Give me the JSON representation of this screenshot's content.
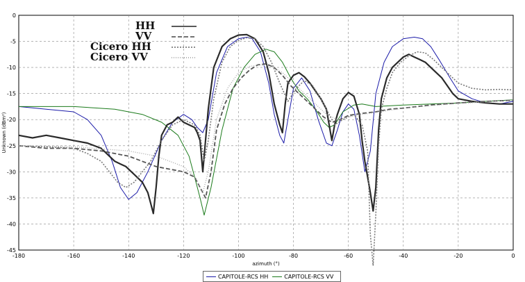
{
  "chart_data": {
    "type": "line",
    "xlabel": "azimuth (°)",
    "ylabel": "Unknown (dBm²)",
    "xlim": [
      -180,
      0
    ],
    "ylim": [
      -45,
      0
    ],
    "x_ticks": [
      "-180",
      "-160",
      "-140",
      "-120",
      "-100",
      "-80",
      "-60",
      "-40",
      "-20",
      "0"
    ],
    "y_ticks": [
      "0",
      "-5",
      "-10",
      "-15",
      "-20",
      "-25",
      "-30",
      "-35",
      "-40",
      "-45"
    ],
    "grid": "dashed",
    "legend_top": [
      {
        "label": "HH",
        "style": "solid"
      },
      {
        "label": "VV",
        "style": "dashed"
      },
      {
        "label": "Cicero HH",
        "style": "dotted"
      },
      {
        "label": "Cicero VV",
        "style": "dotted-light"
      }
    ],
    "legend_bottom": [
      {
        "label": "CAPITOLE-RCS HH",
        "color": "#1a1aa8"
      },
      {
        "label": "CAPITOLE-RCS VV",
        "color": "#1a7a1a"
      }
    ],
    "series": [
      {
        "name": "CAPITOLE-RCS HH",
        "color": "#1a1aa8",
        "width": 1,
        "x": [
          -180,
          -170,
          -160,
          -155,
          -150,
          -146,
          -143,
          -140,
          -137,
          -133,
          -128,
          -124,
          -120,
          -117,
          -115,
          -113,
          -111,
          -108,
          -104,
          -100,
          -97,
          -95,
          -92,
          -89,
          -87,
          -85,
          -83.5,
          -82,
          -80,
          -77,
          -74,
          -71,
          -68,
          -66,
          -64,
          -62,
          -60,
          -58,
          -56,
          -54,
          -52,
          -50,
          -47,
          -44,
          -40,
          -36,
          -33,
          -30,
          -27,
          -23,
          -20,
          -15,
          -10,
          -5,
          0
        ],
        "y": [
          -17.5,
          -18,
          -18.5,
          -20,
          -23,
          -28,
          -33,
          -35.3,
          -34,
          -30,
          -24,
          -20.5,
          -19,
          -20,
          -21.5,
          -22.5,
          -20,
          -11,
          -6,
          -4.5,
          -4.2,
          -4.5,
          -7,
          -13,
          -19,
          -23,
          -24.5,
          -20,
          -14,
          -12,
          -14.5,
          -20,
          -24.5,
          -25,
          -22,
          -18.5,
          -17,
          -18,
          -23,
          -30,
          -26,
          -15,
          -9,
          -6,
          -4.5,
          -4.2,
          -4.5,
          -6,
          -8.5,
          -12,
          -14.5,
          -16,
          -16.8,
          -17,
          -16.5
        ]
      },
      {
        "name": "CAPITOLE-RCS VV",
        "color": "#1a7a1a",
        "width": 1,
        "x": [
          -180,
          -160,
          -145,
          -135,
          -128,
          -122,
          -118,
          -116,
          -114,
          -112.5,
          -110,
          -106,
          -102,
          -98,
          -94,
          -90,
          -87,
          -84,
          -81,
          -78,
          -75,
          -72,
          -69,
          -67,
          -65,
          -62,
          -58,
          -55,
          -50,
          -40,
          -30,
          -20,
          -10,
          0
        ],
        "y": [
          -17.5,
          -17.5,
          -18,
          -19,
          -20.5,
          -23,
          -27,
          -31,
          -35,
          -38.3,
          -33,
          -22,
          -14,
          -10,
          -7.5,
          -6.5,
          -7,
          -9,
          -12,
          -14.5,
          -16,
          -18,
          -20.5,
          -21.5,
          -21,
          -18.5,
          -17.2,
          -17,
          -17.5,
          -17.2,
          -17,
          -16.8,
          -16.5,
          -16.2
        ]
      },
      {
        "name": "HH",
        "color": "#2a2a2a",
        "width": 2.2,
        "x": [
          -180,
          -175,
          -170,
          -165,
          -160,
          -155,
          -150,
          -147,
          -145,
          -143,
          -141,
          -139,
          -137,
          -135,
          -133,
          -132,
          -131,
          -130,
          -129,
          -128,
          -126,
          -124,
          -122,
          -120,
          -118,
          -116,
          -115,
          -114,
          -113,
          -112.5,
          -111,
          -109,
          -106,
          -103,
          -100,
          -97,
          -94,
          -91,
          -89,
          -87,
          -85,
          -84,
          -83,
          -82,
          -80,
          -78,
          -76,
          -74,
          -72,
          -70,
          -68,
          -67,
          -66,
          -65,
          -64,
          -62,
          -60,
          -58,
          -56,
          -55,
          -54,
          -53,
          -52,
          -51,
          -50,
          -49,
          -48,
          -46,
          -44,
          -42,
          -40,
          -38,
          -36,
          -34,
          -32,
          -30,
          -28,
          -26,
          -24,
          -22,
          -20,
          -15,
          -10,
          -5,
          0
        ],
        "y": [
          -23,
          -23.5,
          -23,
          -23.5,
          -24,
          -24.5,
          -25.5,
          -27,
          -28,
          -28.5,
          -29,
          -30,
          -31,
          -32,
          -34,
          -36,
          -38,
          -33,
          -27,
          -23,
          -21,
          -20.5,
          -19.5,
          -20.5,
          -21,
          -21.5,
          -22.5,
          -24,
          -30,
          -27,
          -18,
          -10,
          -6,
          -4.5,
          -3.8,
          -3.7,
          -4.5,
          -7,
          -11,
          -17,
          -21,
          -22.5,
          -17,
          -13,
          -11.5,
          -11,
          -11.8,
          -13,
          -14.5,
          -16,
          -18,
          -21,
          -24,
          -21,
          -19,
          -16,
          -14.8,
          -15.5,
          -19,
          -24,
          -28,
          -31,
          -34,
          -37.5,
          -33,
          -22,
          -16,
          -12,
          -10,
          -9,
          -8,
          -7.5,
          -8,
          -8.5,
          -9,
          -10,
          -11,
          -12,
          -13.5,
          -15,
          -16,
          -16.5,
          -16.8,
          -17,
          -17
        ]
      },
      {
        "name": "VV",
        "color": "#555555",
        "width": 1.8,
        "dash": "6,3",
        "x": [
          -180,
          -170,
          -160,
          -150,
          -140,
          -135,
          -130,
          -125,
          -120,
          -116,
          -114,
          -112,
          -110,
          -108,
          -105,
          -102,
          -99,
          -96,
          -93,
          -90,
          -87,
          -84,
          -81,
          -78,
          -75,
          -72,
          -69,
          -66,
          -63,
          -60,
          -55,
          -50,
          -45,
          -40,
          -35,
          -30,
          -25,
          -20,
          -10,
          0
        ],
        "y": [
          -25,
          -25.5,
          -25.5,
          -26,
          -27,
          -28,
          -29,
          -29.5,
          -30,
          -31,
          -33,
          -35,
          -30,
          -22,
          -17,
          -14,
          -12,
          -10.5,
          -9.5,
          -9.3,
          -10,
          -11.5,
          -13.5,
          -15,
          -16.5,
          -18,
          -19.5,
          -20.5,
          -20,
          -19.2,
          -18.8,
          -18.5,
          -18,
          -17.8,
          -17.5,
          -17.2,
          -17,
          -16.8,
          -16.5,
          -16.3
        ]
      },
      {
        "name": "Cicero HH",
        "color": "#777777",
        "width": 1.6,
        "dash": "2,2",
        "x": [
          -180,
          -170,
          -160,
          -155,
          -150,
          -147,
          -144,
          -141,
          -138,
          -135,
          -132,
          -128,
          -124,
          -120,
          -116,
          -114,
          -112.5,
          -111,
          -109,
          -106,
          -103,
          -100,
          -97,
          -94,
          -91,
          -88,
          -85,
          -82,
          -79,
          -76,
          -73,
          -70,
          -67,
          -65,
          -62,
          -58,
          -55,
          -53,
          -52,
          -51,
          -50,
          -49,
          -48,
          -46,
          -44,
          -41,
          -38,
          -35,
          -32,
          -29,
          -26,
          -23,
          -20,
          -15,
          -10,
          -5,
          0
        ],
        "y": [
          -25,
          -25.2,
          -25.5,
          -26.5,
          -28,
          -30,
          -32,
          -33,
          -32,
          -30,
          -28,
          -24,
          -21,
          -20,
          -21,
          -23,
          -28,
          -24,
          -16,
          -9,
          -6,
          -4.8,
          -4.3,
          -4.5,
          -6,
          -9,
          -13,
          -16.5,
          -14,
          -12.5,
          -13.5,
          -16,
          -19,
          -21,
          -20,
          -19,
          -21,
          -26,
          -42,
          -48,
          -38,
          -25,
          -18,
          -14,
          -11,
          -9,
          -7.8,
          -7,
          -7.2,
          -8.5,
          -10,
          -11.5,
          -13,
          -14,
          -14.3,
          -14.2,
          -14.3
        ]
      },
      {
        "name": "Cicero VV",
        "color": "#aaaaaa",
        "width": 1.4,
        "dash": "1,2",
        "x": [
          -180,
          -160,
          -140,
          -130,
          -125,
          -120,
          -116,
          -113,
          -111,
          -108,
          -104,
          -100,
          -96,
          -92,
          -88,
          -84,
          -80,
          -76,
          -72,
          -68,
          -64,
          -60,
          -55,
          -50,
          -45,
          -40,
          -30,
          -20,
          -10,
          0
        ],
        "y": [
          -25,
          -25.2,
          -26,
          -27,
          -28,
          -29,
          -31,
          -34,
          -30,
          -20,
          -14,
          -11,
          -9.8,
          -9.5,
          -9.8,
          -11,
          -13,
          -15,
          -17,
          -19,
          -20,
          -19.5,
          -19,
          -18.6,
          -18.2,
          -17.8,
          -17.3,
          -16.9,
          -16.6,
          -16.3
        ]
      }
    ]
  }
}
